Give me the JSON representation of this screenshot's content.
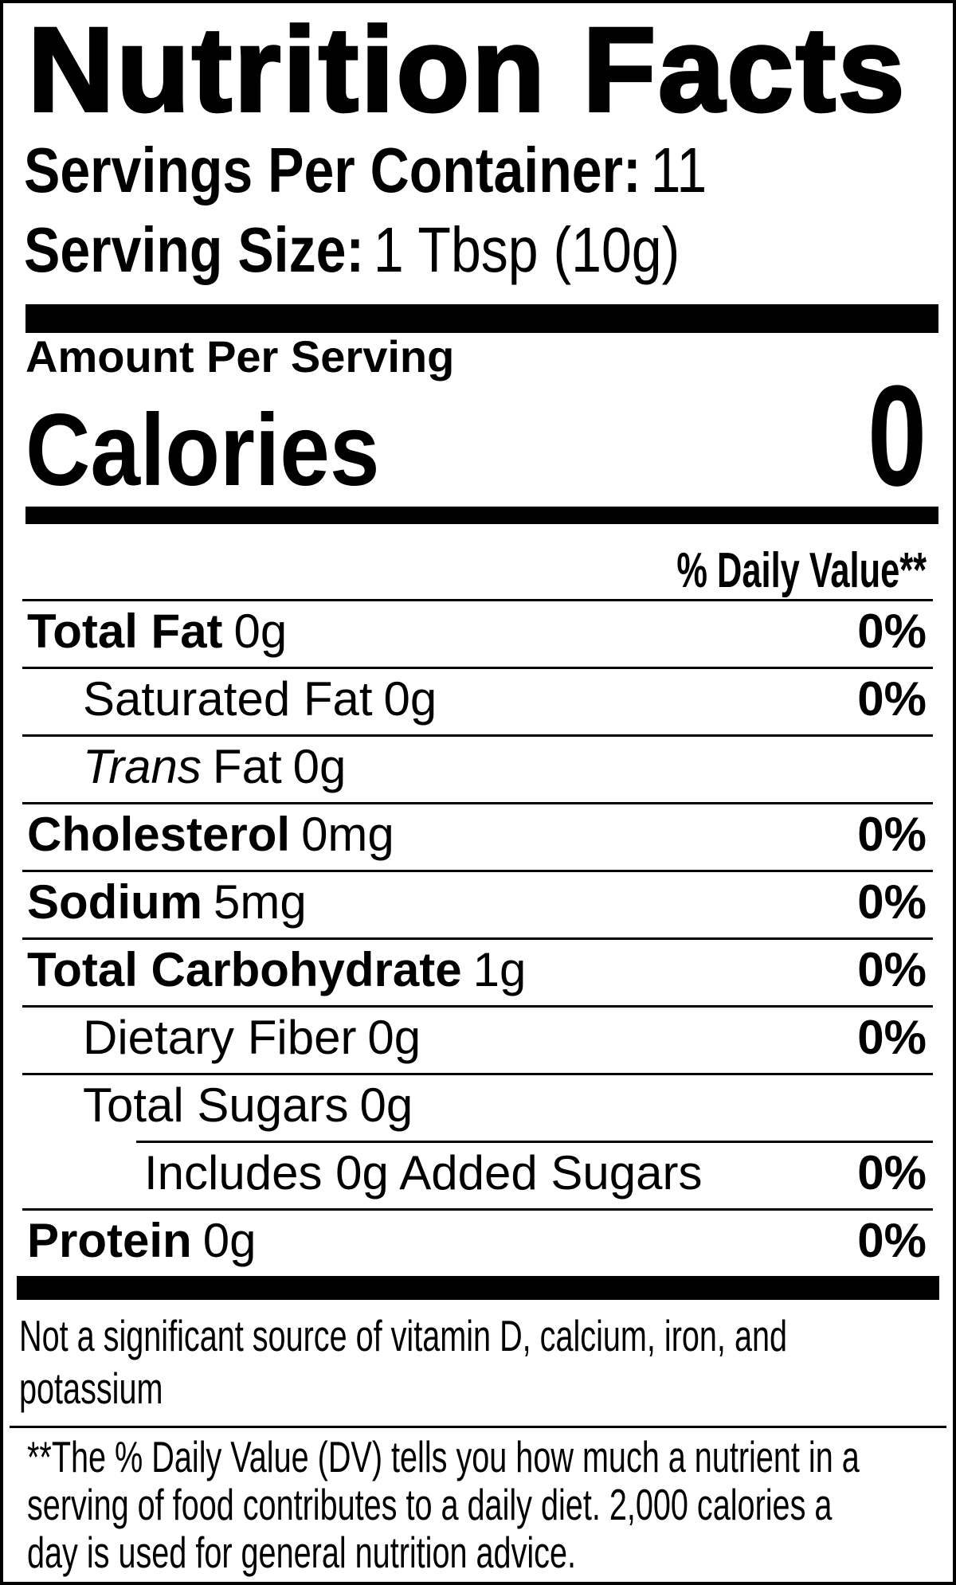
{
  "label": {
    "title": "Nutrition Facts",
    "servings_per_container_label": "Servings Per Container:",
    "servings_per_container_value": "11",
    "serving_size_label": "Serving Size:",
    "serving_size_value": "1 Tbsp (10g)",
    "amount_per_serving": "Amount Per Serving",
    "calories_label": "Calories",
    "calories_value": "0",
    "daily_value_header": "% Daily Value**",
    "rows": [
      {
        "label": "Total Fat",
        "value": "0g",
        "dv": "0%"
      },
      {
        "label": "Saturated Fat",
        "value": "0g",
        "dv": "0%"
      },
      {
        "label_italic": "Trans",
        "label": "Fat",
        "value": "0g",
        "dv": ""
      },
      {
        "label": "Cholesterol",
        "value": "0mg",
        "dv": "0%"
      },
      {
        "label": "Sodium",
        "value": "5mg",
        "dv": "0%"
      },
      {
        "label": "Total Carbohydrate",
        "value": "1g",
        "dv": "0%"
      },
      {
        "label": "Dietary Fiber",
        "value": "0g",
        "dv": "0%"
      },
      {
        "label": "Total Sugars",
        "value": "0g",
        "dv": ""
      },
      {
        "label": "Includes 0g Added Sugars",
        "value": "",
        "dv": "0%"
      },
      {
        "label": "Protein",
        "value": "0g",
        "dv": "0%"
      }
    ],
    "disclaimer_line1": "Not a significant source of vitamin D, calcium, iron, and",
    "disclaimer_line2": "potassium",
    "footnote_line1": "**The % Daily Value (DV) tells you how much a nutrient in a",
    "footnote_line2": "serving of food contributes to a daily diet. 2,000 calories a",
    "footnote_line3": "day is used for general nutrition advice.",
    "colors": {
      "text": "#000000",
      "background": "#ffffff",
      "border": "#000000"
    }
  }
}
